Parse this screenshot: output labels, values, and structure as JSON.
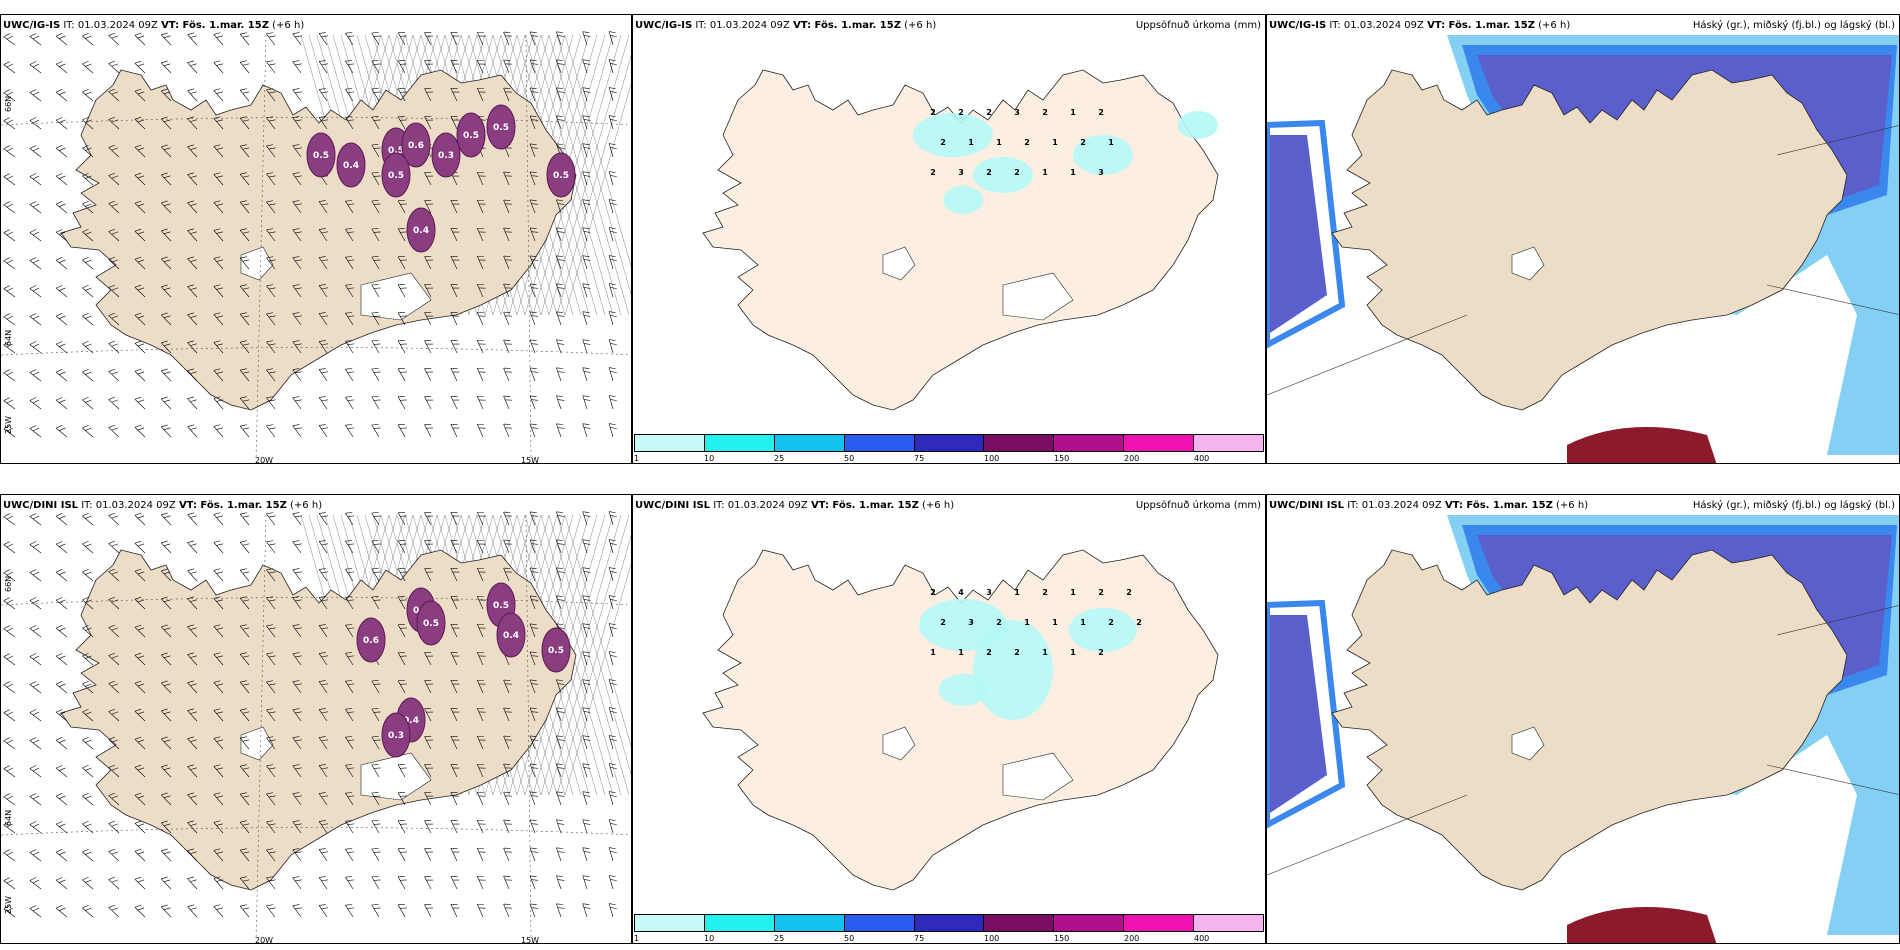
{
  "rows": [
    {
      "model": "UWC/IG-IS",
      "it": "IT: 01.03.2024 09Z",
      "vt": "VT: Fös. 1.mar. 15Z",
      "lead": "(+6 h)",
      "precip_title": "Uppsöfnuð úrkoma (mm)",
      "cloud_title": "Háský (gr.), miðský (fj.bl.) og lágský (bl.)",
      "icing_values": [
        "0.5",
        "0.4",
        "0.5",
        "0.6",
        "0.3",
        "0.5",
        "0.5",
        "0.4",
        "0.5",
        "0.5"
      ],
      "precip_values": [
        "2",
        "2",
        "2",
        "3",
        "2",
        "1",
        "2",
        "2",
        "1",
        "1",
        "2",
        "1",
        "2",
        "1",
        "2",
        "3",
        "2",
        "2",
        "1",
        "1",
        "3"
      ]
    },
    {
      "model": "UWC/DINI ISL",
      "it": "IT: 01.03.2024 09Z",
      "vt": "VT: Fös. 1.mar. 15Z",
      "lead": "(+6 h)",
      "precip_title": "Uppsöfnuð úrkoma (mm)",
      "cloud_title": "Háský (gr.), miðský (fj.bl.) og lágský (bl.)",
      "icing_values": [
        "0.3",
        "0.5",
        "0.5",
        "0.4",
        "0.5",
        "0.6",
        "0.4",
        "0.3"
      ],
      "precip_values": [
        "2",
        "4",
        "3",
        "1",
        "2",
        "1",
        "2",
        "2",
        "2",
        "3",
        "2",
        "1",
        "1",
        "1",
        "2",
        "2",
        "1",
        "1",
        "2",
        "2",
        "1",
        "1",
        "2"
      ]
    }
  ],
  "axes": {
    "lon_labels": [
      "20W",
      "15W"
    ],
    "lat_labels": [
      "66N",
      "64N",
      "25W"
    ]
  },
  "colorbar": {
    "ticks": [
      "1",
      "10",
      "25",
      "50",
      "75",
      "100",
      "150",
      "200",
      "400"
    ],
    "colors": [
      "#c8fafa",
      "#22f2f0",
      "#12c3f0",
      "#2a5cf0",
      "#2e2bba",
      "#7a0c62",
      "#b0108c",
      "#f012b0",
      "#f4b4f0"
    ]
  },
  "colors": {
    "land": "#eddcc6",
    "land_light": "#fcefe2",
    "icing": "#8a3d80",
    "precip": "#b4f8f8",
    "cloud_high": "#5a5fcc",
    "cloud_mid": "#3a88ee",
    "cloud_low": "#84d0f4",
    "cloud_dark": "#8c1a2a"
  }
}
